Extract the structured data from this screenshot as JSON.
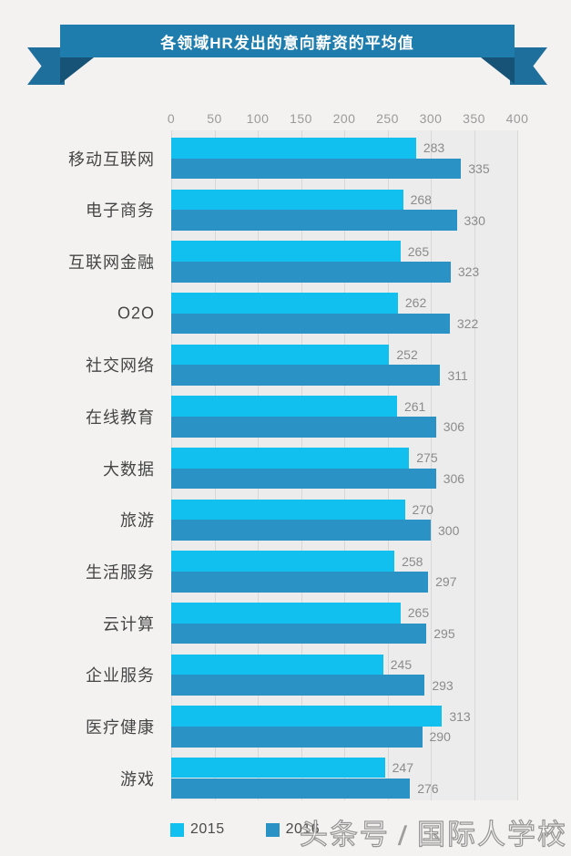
{
  "banner": {
    "title": "各领域HR发出的意向薪资的平均值"
  },
  "chart_data": {
    "type": "bar",
    "orientation": "horizontal",
    "title": "各领域HR发出的意向薪资的平均值",
    "categories": [
      "移动互联网",
      "电子商务",
      "互联网金融",
      "O2O",
      "社交网络",
      "在线教育",
      "大数据",
      "旅游",
      "生活服务",
      "云计算",
      "企业服务",
      "医疗健康",
      "游戏"
    ],
    "series": [
      {
        "name": "2015",
        "color": "#11c0ef",
        "values": [
          283,
          268,
          265,
          262,
          252,
          261,
          275,
          270,
          258,
          265,
          245,
          313,
          247
        ]
      },
      {
        "name": "2016",
        "color": "#2b92c6",
        "values": [
          335,
          330,
          323,
          322,
          311,
          306,
          306,
          300,
          297,
          295,
          293,
          290,
          276
        ]
      }
    ],
    "x_ticks": [
      0,
      50,
      100,
      150,
      200,
      250,
      300,
      350,
      400
    ],
    "xlim": [
      0,
      400
    ],
    "grid": true,
    "legend_position": "bottom",
    "value_labels": true
  },
  "colors": {
    "series_2015": "#11c0ef",
    "series_2016": "#2b92c6",
    "ribbon_band": "#1e7dac",
    "ribbon_tail": "#1f6f9d",
    "ribbon_fold": "#175377",
    "plot_background": "#edecec",
    "page_background": "#f3f2f1",
    "gridline": "#d9d8d8",
    "axis_text": "#9b9a9a",
    "category_text": "#454545",
    "value_text": "#8c8b8b"
  },
  "watermark": {
    "text": "头条号 / 国际人学校"
  }
}
